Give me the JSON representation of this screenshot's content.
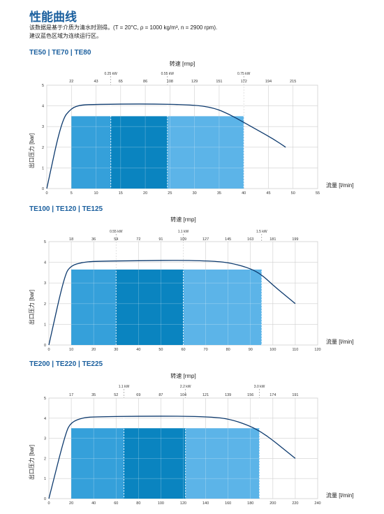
{
  "header": {
    "title": "性能曲线",
    "desc_line1": "该数据是基于介质为清水时测得。(T = 20°C, ρ = 1000 kg/m³, n = 2900 rpm).",
    "desc_line2": "建议蓝色区域为连续运行区。"
  },
  "colors": {
    "title": "#1a5f9e",
    "light_blue": "#5cb4e8",
    "mid_blue": "#35a0da",
    "dark_blue": "#0a84c0",
    "curve": "#0d3a6e",
    "grid": "#cfcfcf"
  },
  "chart_data": [
    {
      "type": "area",
      "title": "TE50 | TE70 | TE80",
      "xlabel": "流量 [l/min]",
      "ylabel": "出口压力 [bar]",
      "top_axis_label": "转速 [rmp]",
      "xlim": [
        0,
        55
      ],
      "ylim": [
        0,
        5
      ],
      "x_ticks": [
        0,
        5,
        10,
        15,
        20,
        25,
        30,
        35,
        40,
        45,
        50,
        55
      ],
      "y_ticks": [
        0,
        1,
        2,
        3,
        4,
        5
      ],
      "top_ticks": [
        22,
        43,
        65,
        86,
        108,
        129,
        151,
        172,
        194,
        215
      ],
      "top_tick_start_x": 5,
      "top_tick_step_x": 5,
      "power_marks": [
        {
          "x": 13,
          "label": "0.25 kW"
        },
        {
          "x": 24.5,
          "label": "0.55 kW"
        },
        {
          "x": 40,
          "label": "0.75 kW"
        }
      ],
      "operating_zones": [
        {
          "x0": 5,
          "x1": 13,
          "y": 3.5,
          "shade": "mid"
        },
        {
          "x0": 13,
          "x1": 24.5,
          "y": 3.5,
          "shade": "dark"
        },
        {
          "x0": 24.5,
          "x1": 40,
          "y": 3.5,
          "shade": "light"
        }
      ],
      "curve": {
        "x": [
          0,
          3,
          5,
          7,
          10,
          20,
          30,
          34,
          37,
          40,
          43,
          46,
          48.5
        ],
        "y": [
          0,
          3.3,
          3.9,
          4.05,
          4.07,
          4.1,
          4.05,
          3.9,
          3.6,
          3.2,
          2.8,
          2.4,
          2.0
        ]
      }
    },
    {
      "type": "area",
      "title": "TE100 | TE120 | TE125",
      "xlabel": "流量 [l/min]",
      "ylabel": "出口压力 [bar]",
      "top_axis_label": "转速 [rmp]",
      "xlim": [
        0,
        120
      ],
      "ylim": [
        0,
        5
      ],
      "x_ticks": [
        0,
        10,
        20,
        30,
        40,
        50,
        60,
        70,
        80,
        90,
        100,
        110,
        120
      ],
      "y_ticks": [
        0,
        1,
        2,
        3,
        4,
        5
      ],
      "top_ticks": [
        18,
        36,
        54,
        72,
        91,
        109,
        127,
        145,
        163,
        181,
        199
      ],
      "top_tick_start_x": 10,
      "top_tick_step_x": 10,
      "power_marks": [
        {
          "x": 30,
          "label": "0.55 kW"
        },
        {
          "x": 60,
          "label": "1.1 kW"
        },
        {
          "x": 95,
          "label": "1.5 kW"
        }
      ],
      "operating_zones": [
        {
          "x0": 10,
          "x1": 30,
          "y": 3.65,
          "shade": "mid"
        },
        {
          "x0": 30,
          "x1": 60,
          "y": 3.65,
          "shade": "dark"
        },
        {
          "x0": 60,
          "x1": 95,
          "y": 3.65,
          "shade": "light"
        }
      ],
      "curve": {
        "x": [
          0,
          7,
          10,
          15,
          20,
          40,
          60,
          75,
          82,
          90,
          95,
          100,
          105,
          110
        ],
        "y": [
          0,
          3.4,
          3.85,
          4.0,
          4.05,
          4.08,
          4.1,
          4.05,
          3.95,
          3.7,
          3.4,
          2.9,
          2.45,
          2.0
        ]
      }
    },
    {
      "type": "area",
      "title": "TE200 | TE220 | TE225",
      "xlabel": "流量 [l/min]",
      "ylabel": "出口压力 [bar]",
      "top_axis_label": "转速 [rmp]",
      "xlim": [
        0,
        240
      ],
      "ylim": [
        0,
        5
      ],
      "x_ticks": [
        0,
        20,
        40,
        60,
        80,
        100,
        120,
        140,
        160,
        180,
        200,
        220,
        240
      ],
      "y_ticks": [
        0,
        1,
        2,
        3,
        4,
        5
      ],
      "top_ticks": [
        17,
        35,
        52,
        69,
        87,
        104,
        121,
        139,
        156,
        174,
        191
      ],
      "top_tick_start_x": 20,
      "top_tick_step_x": 20,
      "power_marks": [
        {
          "x": 67,
          "label": "1.1 kW"
        },
        {
          "x": 122,
          "label": "2.2 kW"
        },
        {
          "x": 188,
          "label": "3.0 kW"
        }
      ],
      "operating_zones": [
        {
          "x0": 20,
          "x1": 67,
          "y": 3.5,
          "shade": "mid"
        },
        {
          "x0": 67,
          "x1": 122,
          "y": 3.5,
          "shade": "dark"
        },
        {
          "x0": 122,
          "x1": 188,
          "y": 3.5,
          "shade": "light"
        }
      ],
      "curve": {
        "x": [
          0,
          15,
          20,
          30,
          40,
          80,
          120,
          150,
          165,
          180,
          190,
          200,
          210,
          220
        ],
        "y": [
          0,
          3.3,
          3.8,
          4.02,
          4.07,
          4.1,
          4.1,
          4.05,
          3.9,
          3.6,
          3.3,
          2.9,
          2.45,
          2.0
        ]
      }
    }
  ]
}
